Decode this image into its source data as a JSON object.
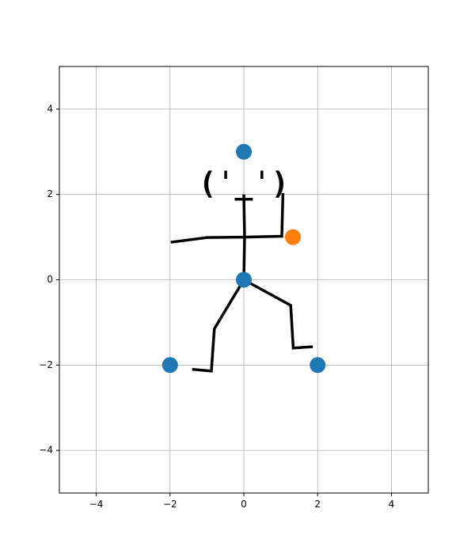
{
  "chart_data": {
    "type": "scatter",
    "xlim": [
      -5,
      5
    ],
    "ylim": [
      -5,
      5
    ],
    "xticks": [
      -4,
      -2,
      0,
      2,
      4
    ],
    "yticks": [
      -4,
      -2,
      0,
      2,
      4
    ],
    "xtick_labels": [
      "−4",
      "−2",
      "0",
      "2",
      "4"
    ],
    "ytick_labels": [
      "−4",
      "−2",
      "0",
      "2",
      "4"
    ],
    "grid": true,
    "series": [
      {
        "color": "#1f77b4",
        "points": [
          {
            "x": 0,
            "y": 3
          },
          {
            "x": 0,
            "y": 0
          },
          {
            "x": -2,
            "y": -2
          },
          {
            "x": 2,
            "y": -2
          }
        ]
      },
      {
        "color": "#ff7f0e",
        "points": [
          {
            "x": 1.33,
            "y": 1.0
          }
        ]
      }
    ],
    "lines": [
      {
        "name": "neck-torso",
        "color": "#000000",
        "points": [
          [
            0,
            2.0
          ],
          [
            0.02,
            1.0
          ],
          [
            0,
            0
          ]
        ]
      },
      {
        "name": "left-arm",
        "color": "#000000",
        "points": [
          [
            0,
            1.0
          ],
          [
            -1.0,
            0.99
          ],
          [
            -1.98,
            0.88
          ]
        ]
      },
      {
        "name": "right-arm",
        "color": "#000000",
        "points": [
          [
            0,
            1.0
          ],
          [
            1.03,
            1.02
          ],
          [
            1.06,
            2.03
          ]
        ]
      },
      {
        "name": "left-leg",
        "color": "#000000",
        "points": [
          [
            0,
            0
          ],
          [
            -0.8,
            -1.15
          ],
          [
            -0.88,
            -2.14
          ],
          [
            -1.4,
            -2.1
          ]
        ]
      },
      {
        "name": "right-leg",
        "color": "#000000",
        "points": [
          [
            0,
            0
          ],
          [
            1.27,
            -0.6
          ],
          [
            1.34,
            -1.6
          ],
          [
            1.87,
            -1.57
          ]
        ]
      }
    ],
    "annotations": [
      {
        "text": "(ˈ_ˈ)",
        "x": 0,
        "y": 2.22
      }
    ]
  }
}
